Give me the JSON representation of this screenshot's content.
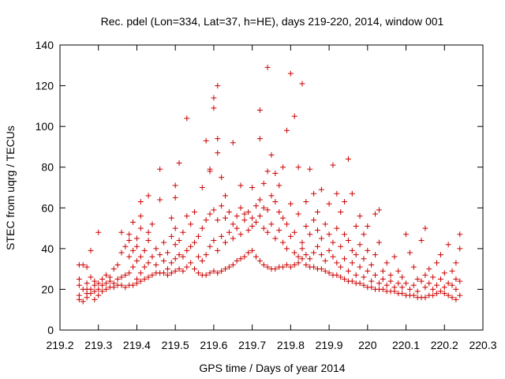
{
  "chart_data": {
    "type": "scatter",
    "title": "Rec. pdel (Lon=334, Lat=37, h=HE), days 219-220, 2014, window 001",
    "xlabel": "GPS time / Days of year 2014",
    "ylabel": "STEC from uqrg / TECUs",
    "xlim": [
      219.2,
      220.3
    ],
    "ylim": [
      0,
      140
    ],
    "xticks": [
      "219.2",
      "219.3",
      "219.4",
      "219.5",
      "219.6",
      "219.7",
      "219.8",
      "219.9",
      "220",
      "220.1",
      "220.2",
      "220.3"
    ],
    "yticks": [
      "0",
      "20",
      "40",
      "60",
      "80",
      "100",
      "120",
      "140"
    ],
    "grid": false,
    "marker": "+",
    "colors": {
      "points": "#cc0000",
      "axes": "#000000",
      "background": "#ffffff"
    },
    "points": [
      [
        219.25,
        15
      ],
      [
        219.25,
        17
      ],
      [
        219.25,
        22
      ],
      [
        219.25,
        25
      ],
      [
        219.25,
        32
      ],
      [
        219.26,
        20
      ],
      [
        219.26,
        14
      ],
      [
        219.26,
        32
      ],
      [
        219.27,
        16
      ],
      [
        219.27,
        18
      ],
      [
        219.27,
        20
      ],
      [
        219.27,
        23
      ],
      [
        219.27,
        31
      ],
      [
        219.28,
        18
      ],
      [
        219.28,
        20
      ],
      [
        219.28,
        26
      ],
      [
        219.28,
        39
      ],
      [
        219.29,
        15
      ],
      [
        219.29,
        19
      ],
      [
        219.29,
        22
      ],
      [
        219.29,
        24
      ],
      [
        219.3,
        17
      ],
      [
        219.3,
        20
      ],
      [
        219.3,
        23
      ],
      [
        219.3,
        48
      ],
      [
        219.31,
        19
      ],
      [
        219.31,
        22
      ],
      [
        219.31,
        25
      ],
      [
        219.32,
        20
      ],
      [
        219.32,
        23
      ],
      [
        219.32,
        27
      ],
      [
        219.33,
        21
      ],
      [
        219.33,
        24
      ],
      [
        219.33,
        26
      ],
      [
        219.34,
        21
      ],
      [
        219.34,
        23
      ],
      [
        219.34,
        30
      ],
      [
        219.35,
        22
      ],
      [
        219.35,
        25
      ],
      [
        219.35,
        32
      ],
      [
        219.36,
        22
      ],
      [
        219.36,
        26
      ],
      [
        219.36,
        38
      ],
      [
        219.36,
        48
      ],
      [
        219.37,
        21
      ],
      [
        219.37,
        27
      ],
      [
        219.37,
        41
      ],
      [
        219.38,
        22
      ],
      [
        219.38,
        28
      ],
      [
        219.38,
        36
      ],
      [
        219.38,
        44
      ],
      [
        219.38,
        47
      ],
      [
        219.39,
        22
      ],
      [
        219.39,
        31
      ],
      [
        219.39,
        39
      ],
      [
        219.39,
        53
      ],
      [
        219.4,
        23
      ],
      [
        219.4,
        25
      ],
      [
        219.4,
        34
      ],
      [
        219.4,
        41
      ],
      [
        219.4,
        45
      ],
      [
        219.41,
        24
      ],
      [
        219.41,
        28
      ],
      [
        219.41,
        36
      ],
      [
        219.41,
        50
      ],
      [
        219.41,
        56
      ],
      [
        219.41,
        63
      ],
      [
        219.42,
        25
      ],
      [
        219.42,
        31
      ],
      [
        219.42,
        39
      ],
      [
        219.43,
        26
      ],
      [
        219.43,
        33
      ],
      [
        219.43,
        44
      ],
      [
        219.43,
        48
      ],
      [
        219.43,
        66
      ],
      [
        219.44,
        27
      ],
      [
        219.44,
        36
      ],
      [
        219.44,
        52
      ],
      [
        219.45,
        28
      ],
      [
        219.45,
        32
      ],
      [
        219.45,
        40
      ],
      [
        219.46,
        28
      ],
      [
        219.46,
        37
      ],
      [
        219.46,
        64
      ],
      [
        219.46,
        79
      ],
      [
        219.47,
        28
      ],
      [
        219.47,
        34
      ],
      [
        219.47,
        43
      ],
      [
        219.48,
        27
      ],
      [
        219.48,
        30
      ],
      [
        219.48,
        38
      ],
      [
        219.49,
        28
      ],
      [
        219.49,
        33
      ],
      [
        219.49,
        46
      ],
      [
        219.49,
        55
      ],
      [
        219.5,
        29
      ],
      [
        219.5,
        35
      ],
      [
        219.5,
        42
      ],
      [
        219.5,
        50
      ],
      [
        219.5,
        65
      ],
      [
        219.5,
        71
      ],
      [
        219.51,
        30
      ],
      [
        219.51,
        37
      ],
      [
        219.51,
        44
      ],
      [
        219.51,
        82
      ],
      [
        219.52,
        29
      ],
      [
        219.52,
        36
      ],
      [
        219.52,
        48
      ],
      [
        219.53,
        31
      ],
      [
        219.53,
        39
      ],
      [
        219.53,
        56
      ],
      [
        219.53,
        104
      ],
      [
        219.54,
        33
      ],
      [
        219.54,
        41
      ],
      [
        219.54,
        52
      ],
      [
        219.55,
        30
      ],
      [
        219.55,
        43
      ],
      [
        219.55,
        58
      ],
      [
        219.56,
        28
      ],
      [
        219.56,
        36
      ],
      [
        219.56,
        46
      ],
      [
        219.57,
        27
      ],
      [
        219.57,
        34
      ],
      [
        219.57,
        50
      ],
      [
        219.57,
        70
      ],
      [
        219.58,
        27
      ],
      [
        219.58,
        37
      ],
      [
        219.58,
        54
      ],
      [
        219.58,
        93
      ],
      [
        219.59,
        28
      ],
      [
        219.59,
        41
      ],
      [
        219.59,
        57
      ],
      [
        219.59,
        78
      ],
      [
        219.59,
        79
      ],
      [
        219.6,
        29
      ],
      [
        219.6,
        44
      ],
      [
        219.6,
        59
      ],
      [
        219.6,
        109
      ],
      [
        219.6,
        114
      ],
      [
        219.61,
        28
      ],
      [
        219.61,
        39
      ],
      [
        219.61,
        54
      ],
      [
        219.61,
        87
      ],
      [
        219.61,
        94
      ],
      [
        219.61,
        120
      ],
      [
        219.62,
        29
      ],
      [
        219.62,
        46
      ],
      [
        219.62,
        61
      ],
      [
        219.62,
        75
      ],
      [
        219.63,
        30
      ],
      [
        219.63,
        43
      ],
      [
        219.63,
        55
      ],
      [
        219.63,
        66
      ],
      [
        219.64,
        31
      ],
      [
        219.64,
        48
      ],
      [
        219.64,
        58
      ],
      [
        219.65,
        32
      ],
      [
        219.65,
        45
      ],
      [
        219.65,
        52
      ],
      [
        219.65,
        92
      ],
      [
        219.66,
        34
      ],
      [
        219.66,
        50
      ],
      [
        219.66,
        56
      ],
      [
        219.67,
        35
      ],
      [
        219.67,
        47
      ],
      [
        219.67,
        60
      ],
      [
        219.67,
        71
      ],
      [
        219.68,
        36
      ],
      [
        219.68,
        54
      ],
      [
        219.68,
        57
      ],
      [
        219.69,
        38
      ],
      [
        219.69,
        49
      ],
      [
        219.69,
        58
      ],
      [
        219.7,
        39
      ],
      [
        219.7,
        51
      ],
      [
        219.7,
        55
      ],
      [
        219.7,
        70
      ],
      [
        219.71,
        36
      ],
      [
        219.71,
        53
      ],
      [
        219.71,
        61
      ],
      [
        219.72,
        34
      ],
      [
        219.72,
        56
      ],
      [
        219.72,
        64
      ],
      [
        219.72,
        94
      ],
      [
        219.72,
        108
      ],
      [
        219.73,
        32
      ],
      [
        219.73,
        50
      ],
      [
        219.73,
        60
      ],
      [
        219.73,
        72
      ],
      [
        219.74,
        31
      ],
      [
        219.74,
        48
      ],
      [
        219.74,
        59
      ],
      [
        219.74,
        78
      ],
      [
        219.74,
        129
      ],
      [
        219.75,
        30
      ],
      [
        219.75,
        52
      ],
      [
        219.75,
        66
      ],
      [
        219.75,
        86
      ],
      [
        219.76,
        30
      ],
      [
        219.76,
        45
      ],
      [
        219.76,
        63
      ],
      [
        219.76,
        77
      ],
      [
        219.77,
        31
      ],
      [
        219.77,
        49
      ],
      [
        219.77,
        58
      ],
      [
        219.77,
        71
      ],
      [
        219.78,
        31
      ],
      [
        219.78,
        43
      ],
      [
        219.78,
        55
      ],
      [
        219.78,
        80
      ],
      [
        219.79,
        32
      ],
      [
        219.79,
        40
      ],
      [
        219.79,
        52
      ],
      [
        219.79,
        98
      ],
      [
        219.8,
        31
      ],
      [
        219.8,
        46
      ],
      [
        219.8,
        62
      ],
      [
        219.8,
        126
      ],
      [
        219.81,
        32
      ],
      [
        219.81,
        38
      ],
      [
        219.81,
        48
      ],
      [
        219.81,
        105
      ],
      [
        219.82,
        33
      ],
      [
        219.82,
        36
      ],
      [
        219.82,
        57
      ],
      [
        219.82,
        80
      ],
      [
        219.83,
        35
      ],
      [
        219.83,
        40
      ],
      [
        219.83,
        43
      ],
      [
        219.83,
        121
      ],
      [
        219.84,
        32
      ],
      [
        219.84,
        37
      ],
      [
        219.84,
        51
      ],
      [
        219.84,
        63
      ],
      [
        219.85,
        31
      ],
      [
        219.85,
        35
      ],
      [
        219.85,
        47
      ],
      [
        219.85,
        79
      ],
      [
        219.86,
        31
      ],
      [
        219.86,
        38
      ],
      [
        219.86,
        54
      ],
      [
        219.86,
        67
      ],
      [
        219.87,
        30
      ],
      [
        219.87,
        41
      ],
      [
        219.87,
        49
      ],
      [
        219.87,
        58
      ],
      [
        219.88,
        30
      ],
      [
        219.88,
        37
      ],
      [
        219.88,
        45
      ],
      [
        219.88,
        69
      ],
      [
        219.89,
        29
      ],
      [
        219.89,
        34
      ],
      [
        219.89,
        52
      ],
      [
        219.9,
        28
      ],
      [
        219.9,
        39
      ],
      [
        219.9,
        47
      ],
      [
        219.9,
        62
      ],
      [
        219.91,
        27
      ],
      [
        219.91,
        36
      ],
      [
        219.91,
        43
      ],
      [
        219.91,
        81
      ],
      [
        219.92,
        27
      ],
      [
        219.92,
        33
      ],
      [
        219.92,
        50
      ],
      [
        219.92,
        67
      ],
      [
        219.93,
        26
      ],
      [
        219.93,
        31
      ],
      [
        219.93,
        41
      ],
      [
        219.93,
        58
      ],
      [
        219.94,
        25
      ],
      [
        219.94,
        35
      ],
      [
        219.94,
        47
      ],
      [
        219.94,
        63
      ],
      [
        219.95,
        24
      ],
      [
        219.95,
        29
      ],
      [
        219.95,
        44
      ],
      [
        219.95,
        84
      ],
      [
        219.96,
        24
      ],
      [
        219.96,
        33
      ],
      [
        219.96,
        39
      ],
      [
        219.96,
        67
      ],
      [
        219.97,
        23
      ],
      [
        219.97,
        27
      ],
      [
        219.97,
        37
      ],
      [
        219.97,
        51
      ],
      [
        219.98,
        23
      ],
      [
        219.98,
        31
      ],
      [
        219.98,
        42
      ],
      [
        219.98,
        56
      ],
      [
        219.99,
        22
      ],
      [
        219.99,
        26
      ],
      [
        219.99,
        35
      ],
      [
        219.99,
        47
      ],
      [
        220.0,
        21
      ],
      [
        220.0,
        29
      ],
      [
        220.0,
        39
      ],
      [
        220.0,
        51
      ],
      [
        220.01,
        21
      ],
      [
        220.01,
        24
      ],
      [
        220.01,
        32
      ],
      [
        220.02,
        20
      ],
      [
        220.02,
        27
      ],
      [
        220.02,
        37
      ],
      [
        220.02,
        57
      ],
      [
        220.03,
        20
      ],
      [
        220.03,
        23
      ],
      [
        220.03,
        43
      ],
      [
        220.03,
        59
      ],
      [
        220.04,
        20
      ],
      [
        220.04,
        25
      ],
      [
        220.04,
        29
      ],
      [
        220.05,
        19
      ],
      [
        220.05,
        22
      ],
      [
        220.05,
        33
      ],
      [
        220.06,
        19
      ],
      [
        220.06,
        24
      ],
      [
        220.06,
        27
      ],
      [
        220.07,
        19
      ],
      [
        220.07,
        21
      ],
      [
        220.07,
        36
      ],
      [
        220.08,
        18
      ],
      [
        220.08,
        23
      ],
      [
        220.08,
        29
      ],
      [
        220.09,
        18
      ],
      [
        220.09,
        21
      ],
      [
        220.09,
        26
      ],
      [
        220.1,
        17
      ],
      [
        220.1,
        23
      ],
      [
        220.1,
        47
      ],
      [
        220.11,
        17
      ],
      [
        220.11,
        20
      ],
      [
        220.11,
        38
      ],
      [
        220.12,
        17
      ],
      [
        220.12,
        22
      ],
      [
        220.12,
        31
      ],
      [
        220.13,
        16
      ],
      [
        220.13,
        19
      ],
      [
        220.13,
        25
      ],
      [
        220.14,
        16
      ],
      [
        220.14,
        24
      ],
      [
        220.14,
        44
      ],
      [
        220.15,
        16
      ],
      [
        220.15,
        21
      ],
      [
        220.15,
        27
      ],
      [
        220.15,
        50
      ],
      [
        220.16,
        17
      ],
      [
        220.16,
        23
      ],
      [
        220.16,
        30
      ],
      [
        220.17,
        17
      ],
      [
        220.17,
        20
      ],
      [
        220.17,
        26
      ],
      [
        220.18,
        18
      ],
      [
        220.18,
        22
      ],
      [
        220.18,
        33
      ],
      [
        220.19,
        19
      ],
      [
        220.19,
        25
      ],
      [
        220.19,
        37
      ],
      [
        220.2,
        18
      ],
      [
        220.2,
        21
      ],
      [
        220.2,
        28
      ],
      [
        220.21,
        17
      ],
      [
        220.21,
        23
      ],
      [
        220.21,
        42
      ],
      [
        220.22,
        16
      ],
      [
        220.22,
        22
      ],
      [
        220.22,
        29
      ],
      [
        220.23,
        15
      ],
      [
        220.23,
        20
      ],
      [
        220.23,
        25
      ],
      [
        220.23,
        33
      ],
      [
        220.24,
        17
      ],
      [
        220.24,
        24
      ],
      [
        220.24,
        40
      ],
      [
        220.24,
        47
      ]
    ]
  }
}
